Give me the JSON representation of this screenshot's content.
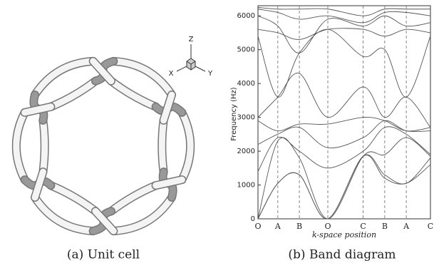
{
  "figure": {
    "left": {
      "caption": "(a) Unit cell",
      "axes": {
        "z": "Z",
        "x": "X",
        "y": "Y"
      }
    },
    "right": {
      "caption": "(b) Band diagram"
    }
  },
  "chart_data": {
    "type": "line",
    "ylabel": "Frequency (Hz)",
    "xlabel": "k-space position",
    "x": [
      0,
      0.115,
      0.24,
      0.405,
      0.61,
      0.735,
      0.86,
      1.0
    ],
    "xlim": [
      0,
      1.0
    ],
    "xticks": [
      {
        "value": 0,
        "label": "O"
      },
      {
        "value": 0.115,
        "label": "A"
      },
      {
        "value": 0.24,
        "label": "B"
      },
      {
        "value": 0.405,
        "label": "O"
      },
      {
        "value": 0.61,
        "label": "C"
      },
      {
        "value": 0.735,
        "label": "B"
      },
      {
        "value": 0.86,
        "label": "A"
      },
      {
        "value": 1.0,
        "label": "C"
      }
    ],
    "ylim": [
      0,
      6300
    ],
    "yticks": [
      0,
      1000,
      2000,
      3000,
      4000,
      5000,
      6000
    ],
    "color": "#555555",
    "symmetry_lines": true,
    "series": [
      {
        "values": [
          0,
          1050,
          1300,
          0,
          1850,
          1200,
          1050,
          1600
        ]
      },
      {
        "values": [
          0,
          1050,
          1300,
          0,
          1850,
          1300,
          1050,
          1800
        ]
      },
      {
        "values": [
          0,
          2300,
          1800,
          0,
          1850,
          1900,
          2400,
          1850
        ]
      },
      {
        "values": [
          1400,
          2400,
          2000,
          1500,
          2000,
          2700,
          2500,
          1900
        ]
      },
      {
        "values": [
          2200,
          2500,
          2700,
          2100,
          2400,
          2900,
          2600,
          2600
        ]
      },
      {
        "values": [
          2900,
          2600,
          2800,
          2800,
          3000,
          2900,
          2600,
          2700
        ]
      },
      {
        "values": [
          3000,
          3600,
          4300,
          3000,
          3900,
          3000,
          3600,
          2700
        ]
      },
      {
        "values": [
          5400,
          3600,
          4900,
          5600,
          4800,
          5000,
          3600,
          5400
        ]
      },
      {
        "values": [
          5600,
          5500,
          5300,
          5600,
          5600,
          5400,
          5600,
          5500
        ]
      },
      {
        "values": [
          6000,
          5700,
          4900,
          5900,
          5700,
          6000,
          5700,
          5800
        ]
      },
      {
        "values": [
          6200,
          6100,
          5900,
          6000,
          5800,
          6100,
          6100,
          6000
        ]
      },
      {
        "values": [
          6250,
          6200,
          6200,
          6200,
          6000,
          6200,
          6200,
          6200
        ]
      }
    ]
  }
}
